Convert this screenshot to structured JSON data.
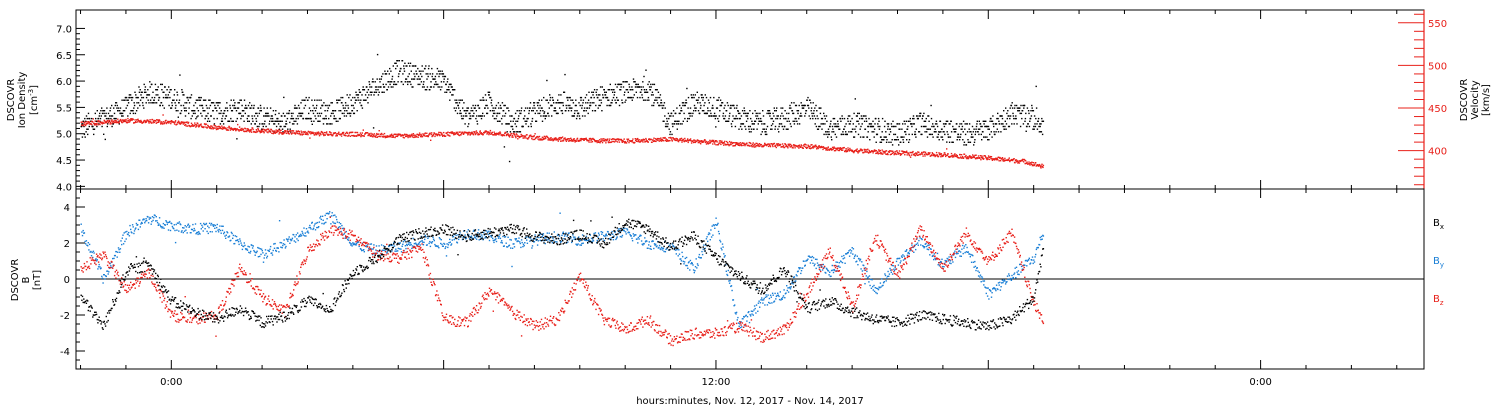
{
  "colors": {
    "black": "#000000",
    "red": "#e8201a",
    "blue": "#1a7fd6"
  },
  "chart_data": [
    {
      "type": "scatter",
      "panel": "top",
      "x_axis": {
        "ticks": [
          {
            "t": 0,
            "label": "0:00"
          },
          {
            "t": 12,
            "label": "12:00"
          },
          {
            "t": 24,
            "label": "0:00"
          }
        ],
        "xlim_hours": [
          -2.1,
          27.6
        ],
        "data_end_hours": 19.2,
        "xlabel": "hours:minutes, Nov. 12, 2017 - Nov. 14, 2017"
      },
      "left_axis": {
        "label_lines": [
          "DSCOVR",
          "Ion Density"
        ],
        "unit_base": "[cm",
        "unit_sup": "-3",
        "unit_end": "]",
        "ylim": [
          3.95,
          7.35
        ],
        "ticks": [
          "4.0",
          "4.5",
          "5.0",
          "5.5",
          "6.0",
          "6.5",
          "7.0"
        ]
      },
      "right_axis": {
        "label_lines": [
          "DSCOVR",
          "Velocity",
          "[km/s]"
        ],
        "ylim": [
          355,
          565
        ],
        "ticks": [
          "400",
          "450",
          "500",
          "550"
        ]
      },
      "series": [
        {
          "color": "black",
          "axis": "left",
          "points": [
            [
              -2.0,
              5.1
            ],
            [
              -1.5,
              5.3
            ],
            [
              -1.0,
              5.5
            ],
            [
              -0.5,
              5.8
            ],
            [
              0.0,
              5.7
            ],
            [
              0.5,
              5.5
            ],
            [
              1.0,
              5.4
            ],
            [
              1.5,
              5.5
            ],
            [
              2.0,
              5.3
            ],
            [
              2.5,
              5.2
            ],
            [
              3.0,
              5.5
            ],
            [
              3.5,
              5.4
            ],
            [
              4.0,
              5.6
            ],
            [
              4.5,
              5.9
            ],
            [
              5.0,
              6.2
            ],
            [
              5.5,
              6.1
            ],
            [
              6.0,
              6.0
            ],
            [
              6.5,
              5.3
            ],
            [
              7.0,
              5.6
            ],
            [
              7.5,
              5.2
            ],
            [
              8.0,
              5.4
            ],
            [
              8.5,
              5.6
            ],
            [
              9.0,
              5.5
            ],
            [
              9.5,
              5.7
            ],
            [
              10.0,
              5.8
            ],
            [
              10.5,
              5.9
            ],
            [
              11.0,
              5.2
            ],
            [
              11.5,
              5.6
            ],
            [
              12.0,
              5.5
            ],
            [
              12.5,
              5.3
            ],
            [
              13.0,
              5.2
            ],
            [
              13.5,
              5.3
            ],
            [
              14.0,
              5.5
            ],
            [
              14.5,
              5.1
            ],
            [
              15.0,
              5.2
            ],
            [
              15.5,
              5.1
            ],
            [
              16.0,
              5.0
            ],
            [
              16.5,
              5.2
            ],
            [
              17.0,
              5.1
            ],
            [
              17.5,
              5.0
            ],
            [
              18.0,
              5.1
            ],
            [
              18.5,
              5.4
            ],
            [
              19.0,
              5.3
            ],
            [
              19.2,
              5.2
            ]
          ]
        },
        {
          "color": "red",
          "axis": "right",
          "points": [
            [
              -2.0,
              432
            ],
            [
              -1.0,
              436
            ],
            [
              0.0,
              434
            ],
            [
              1.0,
              428
            ],
            [
              2.0,
              424
            ],
            [
              3.0,
              421
            ],
            [
              4.0,
              420
            ],
            [
              5.0,
              418
            ],
            [
              6.0,
              420
            ],
            [
              7.0,
              422
            ],
            [
              8.0,
              416
            ],
            [
              9.0,
              413
            ],
            [
              10.0,
              412
            ],
            [
              11.0,
              414
            ],
            [
              12.0,
              410
            ],
            [
              13.0,
              407
            ],
            [
              14.0,
              406
            ],
            [
              15.0,
              401
            ],
            [
              16.0,
              398
            ],
            [
              17.0,
              396
            ],
            [
              18.0,
              392
            ],
            [
              18.8,
              388
            ],
            [
              19.2,
              382
            ]
          ]
        }
      ]
    },
    {
      "type": "scatter",
      "panel": "bottom",
      "left_axis": {
        "label_lines": [
          "DSCOVR",
          "B",
          "[nT]"
        ],
        "ylim": [
          -5.0,
          5.0
        ],
        "ticks": [
          "-4",
          "-2",
          "0",
          "2",
          "4"
        ],
        "zero_line": true
      },
      "legend": [
        {
          "base": "B",
          "sub": "x",
          "color": "black"
        },
        {
          "base": "B",
          "sub": "y",
          "color": "blue"
        },
        {
          "base": "B",
          "sub": "z",
          "color": "red"
        }
      ],
      "series": [
        {
          "color": "black",
          "points": [
            [
              -2.0,
              -1.0
            ],
            [
              -1.5,
              -2.6
            ],
            [
              -1.0,
              0.5
            ],
            [
              -0.5,
              0.8
            ],
            [
              0.0,
              -1.2
            ],
            [
              0.5,
              -1.8
            ],
            [
              1.0,
              -2.2
            ],
            [
              1.5,
              -1.6
            ],
            [
              2.0,
              -2.4
            ],
            [
              2.5,
              -2.0
            ],
            [
              3.0,
              -1.2
            ],
            [
              3.5,
              -1.6
            ],
            [
              4.0,
              0.4
            ],
            [
              4.5,
              1.2
            ],
            [
              5.0,
              2.2
            ],
            [
              5.5,
              2.6
            ],
            [
              6.0,
              2.8
            ],
            [
              6.5,
              2.4
            ],
            [
              7.0,
              2.6
            ],
            [
              7.5,
              2.8
            ],
            [
              8.0,
              2.4
            ],
            [
              8.5,
              2.2
            ],
            [
              9.0,
              2.5
            ],
            [
              9.5,
              2.0
            ],
            [
              10.0,
              3.2
            ],
            [
              10.5,
              2.8
            ],
            [
              11.0,
              1.8
            ],
            [
              11.5,
              2.4
            ],
            [
              12.0,
              1.2
            ],
            [
              12.5,
              0.2
            ],
            [
              13.0,
              -0.6
            ],
            [
              13.5,
              0.6
            ],
            [
              14.0,
              -1.6
            ],
            [
              14.5,
              -1.2
            ],
            [
              15.0,
              -1.8
            ],
            [
              15.5,
              -2.2
            ],
            [
              16.0,
              -2.4
            ],
            [
              16.5,
              -2.0
            ],
            [
              17.0,
              -2.2
            ],
            [
              17.5,
              -2.4
            ],
            [
              18.0,
              -2.6
            ],
            [
              18.5,
              -2.2
            ],
            [
              19.0,
              -1.0
            ],
            [
              19.2,
              1.8
            ]
          ]
        },
        {
          "color": "blue",
          "points": [
            [
              -2.0,
              2.8
            ],
            [
              -1.5,
              0.0
            ],
            [
              -1.0,
              2.6
            ],
            [
              -0.5,
              3.4
            ],
            [
              0.0,
              3.0
            ],
            [
              0.5,
              2.8
            ],
            [
              1.0,
              2.9
            ],
            [
              1.5,
              2.0
            ],
            [
              2.0,
              1.4
            ],
            [
              2.5,
              2.0
            ],
            [
              3.0,
              2.8
            ],
            [
              3.5,
              3.6
            ],
            [
              4.0,
              2.0
            ],
            [
              4.5,
              1.6
            ],
            [
              5.0,
              1.8
            ],
            [
              5.5,
              2.2
            ],
            [
              6.0,
              2.0
            ],
            [
              6.5,
              2.6
            ],
            [
              7.0,
              2.4
            ],
            [
              7.5,
              2.0
            ],
            [
              8.0,
              2.2
            ],
            [
              8.5,
              2.4
            ],
            [
              9.0,
              2.2
            ],
            [
              9.5,
              2.4
            ],
            [
              10.0,
              2.6
            ],
            [
              10.5,
              2.0
            ],
            [
              11.0,
              1.8
            ],
            [
              11.5,
              0.6
            ],
            [
              12.0,
              3.2
            ],
            [
              12.5,
              -2.6
            ],
            [
              13.0,
              -1.2
            ],
            [
              13.5,
              -0.8
            ],
            [
              14.0,
              1.2
            ],
            [
              14.5,
              0.4
            ],
            [
              15.0,
              1.6
            ],
            [
              15.5,
              -0.6
            ],
            [
              16.0,
              1.0
            ],
            [
              16.5,
              2.2
            ],
            [
              17.0,
              0.8
            ],
            [
              17.5,
              1.8
            ],
            [
              18.0,
              -0.8
            ],
            [
              18.5,
              0.2
            ],
            [
              19.0,
              1.2
            ],
            [
              19.2,
              2.6
            ]
          ]
        },
        {
          "color": "red",
          "points": [
            [
              -2.0,
              0.6
            ],
            [
              -1.5,
              1.4
            ],
            [
              -1.0,
              -0.6
            ],
            [
              -0.5,
              0.4
            ],
            [
              0.0,
              -2.0
            ],
            [
              0.5,
              -2.2
            ],
            [
              1.0,
              -2.0
            ],
            [
              1.5,
              0.6
            ],
            [
              2.0,
              -1.0
            ],
            [
              2.5,
              -1.8
            ],
            [
              3.0,
              1.6
            ],
            [
              3.5,
              2.8
            ],
            [
              4.0,
              2.4
            ],
            [
              4.5,
              1.4
            ],
            [
              5.0,
              1.2
            ],
            [
              5.5,
              1.8
            ],
            [
              6.0,
              -2.2
            ],
            [
              6.5,
              -2.4
            ],
            [
              7.0,
              -0.6
            ],
            [
              7.5,
              -1.8
            ],
            [
              8.0,
              -2.6
            ],
            [
              8.5,
              -2.2
            ],
            [
              9.0,
              0.2
            ],
            [
              9.5,
              -2.2
            ],
            [
              10.0,
              -2.8
            ],
            [
              10.5,
              -2.2
            ],
            [
              11.0,
              -3.4
            ],
            [
              11.5,
              -3.0
            ],
            [
              12.0,
              -3.0
            ],
            [
              12.5,
              -2.6
            ],
            [
              13.0,
              -3.2
            ],
            [
              13.5,
              -2.8
            ],
            [
              14.0,
              -0.8
            ],
            [
              14.5,
              1.6
            ],
            [
              15.0,
              -1.6
            ],
            [
              15.5,
              2.4
            ],
            [
              16.0,
              0.2
            ],
            [
              16.5,
              2.8
            ],
            [
              17.0,
              0.6
            ],
            [
              17.5,
              2.6
            ],
            [
              18.0,
              1.0
            ],
            [
              18.5,
              2.6
            ],
            [
              19.0,
              -1.4
            ],
            [
              19.2,
              -2.2
            ]
          ]
        }
      ]
    }
  ]
}
